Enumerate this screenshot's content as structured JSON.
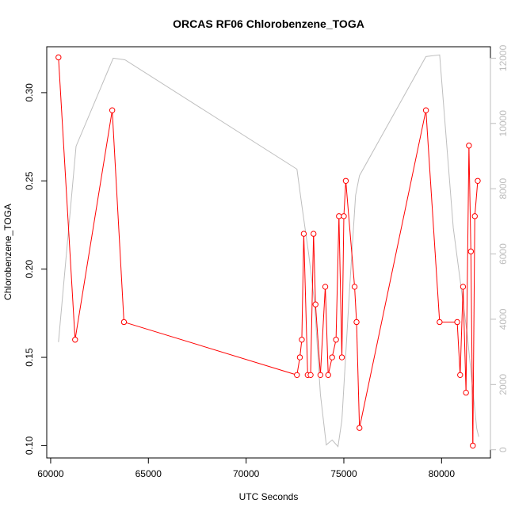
{
  "chart_data": {
    "type": "line",
    "title": "ORCAS RF06 Chlorobenzene_TOGA",
    "xlabel": "UTC Seconds",
    "ylabel": "Chlorobenzene_TOGA",
    "xlim": [
      59800,
      82500
    ],
    "ylim": [
      0.093,
      0.326
    ],
    "y2lim": [
      -250,
      12350
    ],
    "x_ticks": [
      60000,
      65000,
      70000,
      75000,
      80000
    ],
    "y_ticks": [
      0.1,
      0.15,
      0.2,
      0.25,
      0.3
    ],
    "y2_ticks": [
      0,
      2000,
      4000,
      6000,
      8000,
      10000,
      12000
    ],
    "x_tick_labels": [
      "60000",
      "65000",
      "70000",
      "75000",
      "80000"
    ],
    "y_tick_labels": [
      "0.10",
      "0.15",
      "0.20",
      "0.25",
      "0.30"
    ],
    "y2_tick_labels": [
      "0",
      "2000",
      "4000",
      "6000",
      "8000",
      "10000",
      "12000"
    ],
    "colors": {
      "series": "#ff0000",
      "secondary": "#bebebe"
    },
    "series": [
      {
        "axis": "left",
        "style": "line+points",
        "color": "#ff0000",
        "x": [
          60400,
          61250,
          63150,
          63750,
          72600,
          72750,
          72850,
          72950,
          73150,
          73300,
          73450,
          73550,
          73800,
          74050,
          74200,
          74400,
          74600,
          74750,
          74900,
          75000,
          75100,
          75550,
          75650,
          75800,
          79200,
          79900,
          80800,
          80950,
          81100,
          81250,
          81400,
          81500,
          81600,
          81700,
          81850
        ],
        "y": [
          0.32,
          0.16,
          0.29,
          0.17,
          0.14,
          0.15,
          0.16,
          0.22,
          0.14,
          0.14,
          0.22,
          0.18,
          0.14,
          0.19,
          0.14,
          0.15,
          0.16,
          0.23,
          0.15,
          0.23,
          0.25,
          0.19,
          0.17,
          0.11,
          0.29,
          0.17,
          0.17,
          0.14,
          0.19,
          0.13,
          0.27,
          0.21,
          0.1,
          0.23,
          0.25
        ]
      },
      {
        "axis": "right",
        "style": "line",
        "color": "#bebebe",
        "x": [
          60400,
          61300,
          63200,
          63800,
          72600,
          72850,
          73200,
          73500,
          73800,
          74100,
          74400,
          74700,
          74900,
          75300,
          75600,
          75800,
          79200,
          79900,
          80600,
          81300,
          81800,
          81900
        ],
        "y": [
          3300,
          9300,
          12000,
          11950,
          8600,
          7500,
          6000,
          4500,
          1700,
          150,
          300,
          100,
          900,
          5000,
          7800,
          8400,
          12050,
          12100,
          6800,
          3600,
          650,
          400
        ]
      }
    ]
  }
}
